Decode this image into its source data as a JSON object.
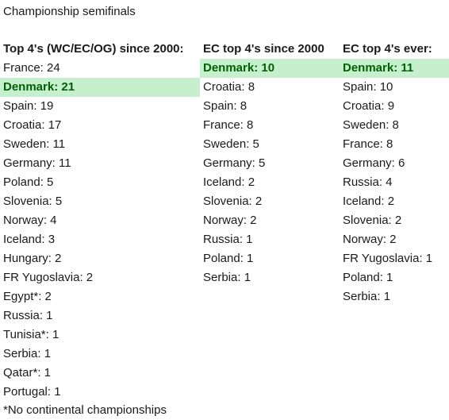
{
  "title": "Championship semifinals",
  "columns": [
    {
      "header": "Top 4's (WC/EC/OG) since 2000:",
      "rows": [
        {
          "text": "France: 24"
        },
        {
          "text": "Denmark: 21",
          "highlight": true
        },
        {
          "text": "Spain: 19"
        },
        {
          "text": "Croatia: 17"
        },
        {
          "text": "Sweden: 11"
        },
        {
          "text": "Germany: 11"
        },
        {
          "text": "Poland: 5"
        },
        {
          "text": "Slovenia: 5"
        },
        {
          "text": "Norway: 4"
        },
        {
          "text": "Iceland: 3"
        },
        {
          "text": "Hungary: 2"
        },
        {
          "text": "FR Yugoslavia: 2"
        },
        {
          "text": "Egypt*: 2"
        },
        {
          "text": "Russia: 1"
        },
        {
          "text": "Tunisia*: 1"
        },
        {
          "text": "Serbia: 1"
        },
        {
          "text": "Qatar*: 1"
        },
        {
          "text": "Portugal: 1"
        }
      ]
    },
    {
      "header": "EC top 4's since 2000",
      "rows": [
        {
          "text": "Denmark: 10",
          "highlight": true
        },
        {
          "text": "Croatia: 8"
        },
        {
          "text": "Spain: 8"
        },
        {
          "text": "France: 8"
        },
        {
          "text": "Sweden: 5"
        },
        {
          "text": "Germany: 5"
        },
        {
          "text": "Iceland: 2"
        },
        {
          "text": "Slovenia: 2"
        },
        {
          "text": "Norway: 2"
        },
        {
          "text": "Russia: 1"
        },
        {
          "text": "Poland: 1"
        },
        {
          "text": "Serbia: 1"
        }
      ]
    },
    {
      "header": "EC top 4's ever:",
      "rows": [
        {
          "text": "Denmark: 11",
          "highlight": true
        },
        {
          "text": "Spain: 10"
        },
        {
          "text": "Croatia: 9"
        },
        {
          "text": "Sweden: 8"
        },
        {
          "text": "France: 8"
        },
        {
          "text": "Germany: 6"
        },
        {
          "text": "Russia: 4"
        },
        {
          "text": "Iceland: 2"
        },
        {
          "text": "Slovenia: 2"
        },
        {
          "text": "Norway: 2"
        },
        {
          "text": "FR Yugoslavia: 1"
        },
        {
          "text": "Poland: 1"
        },
        {
          "text": "Serbia: 1"
        }
      ]
    }
  ],
  "footnote": "*No continental championships",
  "colors": {
    "highlight_fill": "#c6efce",
    "highlight_text": "#006100"
  }
}
